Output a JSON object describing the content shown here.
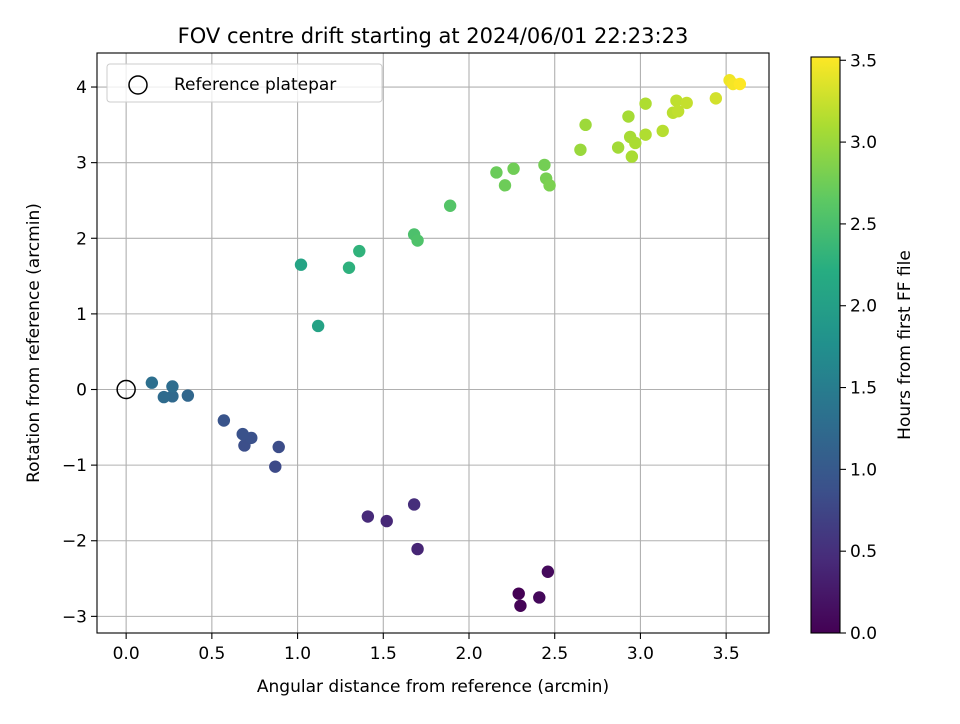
{
  "chart_data": {
    "type": "scatter",
    "title": "FOV centre drift starting at 2024/06/01 22:23:23",
    "xlabel": "Angular distance from reference (arcmin)",
    "ylabel": "Rotation from reference (arcmin)",
    "xlim": [
      -0.17,
      3.75
    ],
    "ylim": [
      -3.22,
      4.45
    ],
    "xticks": [
      0.0,
      0.5,
      1.0,
      1.5,
      2.0,
      2.5,
      3.0,
      3.5
    ],
    "xtick_labels": [
      "0.0",
      "0.5",
      "1.0",
      "1.5",
      "2.0",
      "2.5",
      "3.0",
      "3.5"
    ],
    "yticks": [
      -3,
      -2,
      -1,
      0,
      1,
      2,
      3,
      4
    ],
    "ytick_labels": [
      "−3",
      "−2",
      "−1",
      "0",
      "1",
      "2",
      "3",
      "4"
    ],
    "grid": true,
    "legend": {
      "placement": "top-left",
      "entries": [
        {
          "label": "Reference platepar",
          "marker": "open-circle"
        }
      ]
    },
    "reference_point": {
      "x": 0.0,
      "y": 0.0
    },
    "colorbar": {
      "label": "Hours from first FF file",
      "colormap": "viridis",
      "range": [
        0.0,
        3.52
      ],
      "ticks": [
        0.0,
        0.5,
        1.0,
        1.5,
        2.0,
        2.5,
        3.0,
        3.5
      ],
      "tick_labels": [
        "0.0",
        "0.5",
        "1.0",
        "1.5",
        "2.0",
        "2.5",
        "3.0",
        "3.5"
      ]
    },
    "points": [
      {
        "x": 2.29,
        "y": -2.7,
        "c": 0.0
      },
      {
        "x": 2.3,
        "y": -2.86,
        "c": 0.03
      },
      {
        "x": 2.41,
        "y": -2.75,
        "c": 0.07
      },
      {
        "x": 2.46,
        "y": -2.41,
        "c": 0.1
      },
      {
        "x": 1.7,
        "y": -2.11,
        "c": 0.38
      },
      {
        "x": 1.52,
        "y": -1.74,
        "c": 0.42
      },
      {
        "x": 1.41,
        "y": -1.68,
        "c": 0.45
      },
      {
        "x": 1.68,
        "y": -1.52,
        "c": 0.48
      },
      {
        "x": 0.87,
        "y": -1.02,
        "c": 0.8
      },
      {
        "x": 0.89,
        "y": -0.76,
        "c": 0.83
      },
      {
        "x": 0.69,
        "y": -0.74,
        "c": 0.86
      },
      {
        "x": 0.73,
        "y": -0.64,
        "c": 0.88
      },
      {
        "x": 0.68,
        "y": -0.59,
        "c": 0.9
      },
      {
        "x": 0.57,
        "y": -0.41,
        "c": 0.93
      },
      {
        "x": 0.36,
        "y": -0.08,
        "c": 1.2
      },
      {
        "x": 0.27,
        "y": -0.09,
        "c": 1.23
      },
      {
        "x": 0.22,
        "y": -0.1,
        "c": 1.25
      },
      {
        "x": 0.27,
        "y": 0.04,
        "c": 1.28
      },
      {
        "x": 0.15,
        "y": 0.09,
        "c": 1.31
      },
      {
        "x": 1.12,
        "y": 0.84,
        "c": 2.05
      },
      {
        "x": 1.02,
        "y": 1.65,
        "c": 2.07
      },
      {
        "x": 1.3,
        "y": 1.61,
        "c": 2.27
      },
      {
        "x": 1.36,
        "y": 1.83,
        "c": 2.3
      },
      {
        "x": 1.68,
        "y": 2.05,
        "c": 2.52
      },
      {
        "x": 1.7,
        "y": 1.97,
        "c": 2.54
      },
      {
        "x": 1.89,
        "y": 2.43,
        "c": 2.58
      },
      {
        "x": 2.16,
        "y": 2.87,
        "c": 2.72
      },
      {
        "x": 2.21,
        "y": 2.7,
        "c": 2.74
      },
      {
        "x": 2.26,
        "y": 2.92,
        "c": 2.76
      },
      {
        "x": 2.44,
        "y": 2.97,
        "c": 2.78
      },
      {
        "x": 2.45,
        "y": 2.79,
        "c": 2.8
      },
      {
        "x": 2.47,
        "y": 2.7,
        "c": 2.82
      },
      {
        "x": 2.65,
        "y": 3.17,
        "c": 3.0
      },
      {
        "x": 2.68,
        "y": 3.5,
        "c": 3.02
      },
      {
        "x": 2.87,
        "y": 3.2,
        "c": 3.05
      },
      {
        "x": 2.93,
        "y": 3.61,
        "c": 3.07
      },
      {
        "x": 2.94,
        "y": 3.34,
        "c": 3.08
      },
      {
        "x": 2.95,
        "y": 3.08,
        "c": 3.09
      },
      {
        "x": 2.97,
        "y": 3.26,
        "c": 3.1
      },
      {
        "x": 3.03,
        "y": 3.78,
        "c": 3.12
      },
      {
        "x": 3.03,
        "y": 3.37,
        "c": 3.13
      },
      {
        "x": 3.13,
        "y": 3.42,
        "c": 3.16
      },
      {
        "x": 3.19,
        "y": 3.66,
        "c": 3.18
      },
      {
        "x": 3.21,
        "y": 3.82,
        "c": 3.2
      },
      {
        "x": 3.22,
        "y": 3.68,
        "c": 3.21
      },
      {
        "x": 3.27,
        "y": 3.79,
        "c": 3.23
      },
      {
        "x": 3.44,
        "y": 3.85,
        "c": 3.3
      },
      {
        "x": 3.52,
        "y": 4.09,
        "c": 3.45
      },
      {
        "x": 3.54,
        "y": 4.04,
        "c": 3.48
      },
      {
        "x": 3.58,
        "y": 4.04,
        "c": 3.52
      }
    ]
  }
}
